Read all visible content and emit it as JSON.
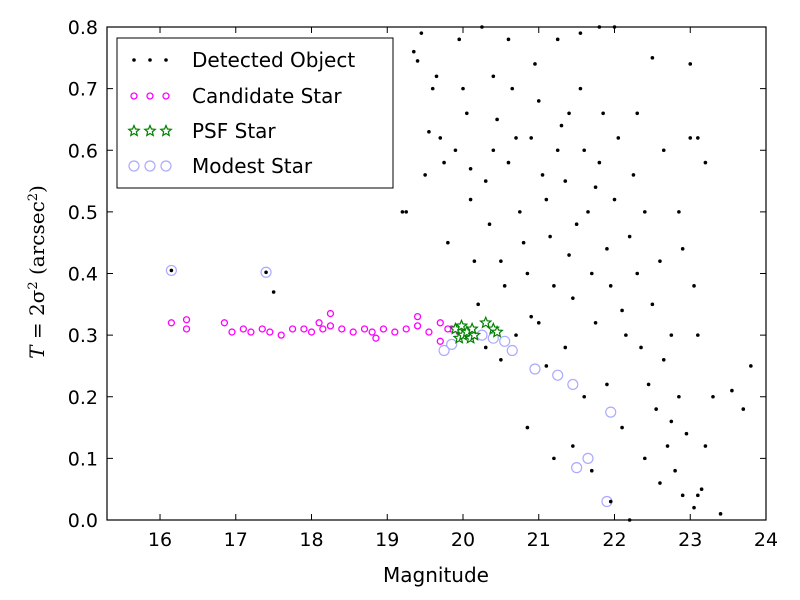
{
  "chart_data": {
    "type": "scatter",
    "title": "",
    "xlabel": "Magnitude",
    "ylabel": {
      "prefix": "T",
      "eq": " = 2σ",
      "exp1": "2",
      "mid": " (arcsec",
      "exp2": "2",
      "suffix": ")"
    },
    "xlim": [
      15.3,
      24
    ],
    "ylim": [
      0,
      0.8
    ],
    "xticks": [
      16,
      17,
      18,
      19,
      20,
      21,
      22,
      23,
      24
    ],
    "yticks": [
      0.0,
      0.1,
      0.2,
      0.3,
      0.4,
      0.5,
      0.6,
      0.7,
      0.8
    ],
    "xtick_labels": [
      "16",
      "17",
      "18",
      "19",
      "20",
      "21",
      "22",
      "23",
      "24"
    ],
    "ytick_labels": [
      "0.0",
      "0.1",
      "0.2",
      "0.3",
      "0.4",
      "0.5",
      "0.6",
      "0.7",
      "0.8"
    ],
    "grid": false,
    "legend_position": "top-left",
    "series": [
      {
        "name": "Detected Object",
        "marker": "dot",
        "color": "#000000",
        "points": [
          [
            16.15,
            0.405
          ],
          [
            17.4,
            0.402
          ],
          [
            17.5,
            0.37
          ],
          [
            19.2,
            0.5
          ],
          [
            19.25,
            0.5
          ],
          [
            19.5,
            0.56
          ],
          [
            19.35,
            0.76
          ],
          [
            19.4,
            0.745
          ],
          [
            19.45,
            0.79
          ],
          [
            19.6,
            0.7
          ],
          [
            19.65,
            0.72
          ],
          [
            19.7,
            0.62
          ],
          [
            19.55,
            0.63
          ],
          [
            19.75,
            0.58
          ],
          [
            19.8,
            0.45
          ],
          [
            19.9,
            0.6
          ],
          [
            19.95,
            0.78
          ],
          [
            20.0,
            0.7
          ],
          [
            20.05,
            0.66
          ],
          [
            20.1,
            0.57
          ],
          [
            20.15,
            0.42
          ],
          [
            20.2,
            0.35
          ],
          [
            20.25,
            0.8
          ],
          [
            20.3,
            0.55
          ],
          [
            20.35,
            0.48
          ],
          [
            20.4,
            0.6
          ],
          [
            20.45,
            0.65
          ],
          [
            20.5,
            0.42
          ],
          [
            20.55,
            0.38
          ],
          [
            20.6,
            0.58
          ],
          [
            20.65,
            0.7
          ],
          [
            20.7,
            0.62
          ],
          [
            20.75,
            0.5
          ],
          [
            20.8,
            0.45
          ],
          [
            20.85,
            0.4
          ],
          [
            20.9,
            0.33
          ],
          [
            20.95,
            0.74
          ],
          [
            21.0,
            0.68
          ],
          [
            21.05,
            0.56
          ],
          [
            21.1,
            0.52
          ],
          [
            21.15,
            0.46
          ],
          [
            21.2,
            0.38
          ],
          [
            21.25,
            0.78
          ],
          [
            21.3,
            0.64
          ],
          [
            21.35,
            0.55
          ],
          [
            21.4,
            0.43
          ],
          [
            21.45,
            0.36
          ],
          [
            21.5,
            0.48
          ],
          [
            21.55,
            0.7
          ],
          [
            21.6,
            0.6
          ],
          [
            21.65,
            0.5
          ],
          [
            21.7,
            0.4
          ],
          [
            21.75,
            0.32
          ],
          [
            21.8,
            0.58
          ],
          [
            21.85,
            0.66
          ],
          [
            21.9,
            0.44
          ],
          [
            21.95,
            0.38
          ],
          [
            22.0,
            0.52
          ],
          [
            22.05,
            0.62
          ],
          [
            22.1,
            0.34
          ],
          [
            22.15,
            0.3
          ],
          [
            22.2,
            0.46
          ],
          [
            22.25,
            0.56
          ],
          [
            22.3,
            0.4
          ],
          [
            22.35,
            0.28
          ],
          [
            22.4,
            0.5
          ],
          [
            22.45,
            0.22
          ],
          [
            22.5,
            0.35
          ],
          [
            22.55,
            0.18
          ],
          [
            22.6,
            0.42
          ],
          [
            22.65,
            0.26
          ],
          [
            22.7,
            0.12
          ],
          [
            22.75,
            0.3
          ],
          [
            22.8,
            0.08
          ],
          [
            22.85,
            0.2
          ],
          [
            22.9,
            0.04
          ],
          [
            23.0,
            0.62
          ],
          [
            23.05,
            0.02
          ],
          [
            23.1,
            0.62
          ],
          [
            23.15,
            0.05
          ],
          [
            23.2,
            0.58
          ],
          [
            23.3,
            0.2
          ],
          [
            23.4,
            0.01
          ],
          [
            23.55,
            0.21
          ],
          [
            23.7,
            0.18
          ],
          [
            23.8,
            0.25
          ],
          [
            23.0,
            0.74
          ],
          [
            22.5,
            0.75
          ],
          [
            22.0,
            0.8
          ],
          [
            21.8,
            0.8
          ],
          [
            21.55,
            0.79
          ],
          [
            21.2,
            0.1
          ],
          [
            21.7,
            0.08
          ],
          [
            21.95,
            0.03
          ],
          [
            22.2,
            0.0
          ],
          [
            22.1,
            0.15
          ],
          [
            21.9,
            0.22
          ],
          [
            21.6,
            0.2
          ],
          [
            21.35,
            0.28
          ],
          [
            21.1,
            0.25
          ],
          [
            20.85,
            0.15
          ],
          [
            20.3,
            0.28
          ],
          [
            20.7,
            0.3
          ],
          [
            21.0,
            0.32
          ],
          [
            20.5,
            0.26
          ],
          [
            21.45,
            0.12
          ],
          [
            22.4,
            0.1
          ],
          [
            22.6,
            0.06
          ],
          [
            23.2,
            0.12
          ],
          [
            23.1,
            0.04
          ],
          [
            22.95,
            0.14
          ],
          [
            22.75,
            0.16
          ],
          [
            20.1,
            0.52
          ],
          [
            20.6,
            0.78
          ],
          [
            21.75,
            0.54
          ],
          [
            22.3,
            0.66
          ],
          [
            22.65,
            0.6
          ],
          [
            22.85,
            0.5
          ],
          [
            22.9,
            0.44
          ],
          [
            23.05,
            0.38
          ],
          [
            23.1,
            0.3
          ],
          [
            21.25,
            0.6
          ],
          [
            21.4,
            0.66
          ],
          [
            20.9,
            0.62
          ],
          [
            20.4,
            0.72
          ]
        ]
      },
      {
        "name": "Candidate Star",
        "marker": "circle",
        "color": "#ff00ff",
        "points": [
          [
            16.15,
            0.32
          ],
          [
            16.35,
            0.325
          ],
          [
            16.35,
            0.31
          ],
          [
            16.85,
            0.32
          ],
          [
            16.95,
            0.305
          ],
          [
            17.1,
            0.31
          ],
          [
            17.2,
            0.305
          ],
          [
            17.35,
            0.31
          ],
          [
            17.45,
            0.305
          ],
          [
            17.6,
            0.3
          ],
          [
            17.75,
            0.31
          ],
          [
            17.9,
            0.31
          ],
          [
            18.0,
            0.305
          ],
          [
            18.15,
            0.31
          ],
          [
            18.25,
            0.315
          ],
          [
            18.4,
            0.31
          ],
          [
            18.55,
            0.305
          ],
          [
            18.7,
            0.31
          ],
          [
            18.8,
            0.305
          ],
          [
            18.95,
            0.31
          ],
          [
            19.1,
            0.305
          ],
          [
            19.25,
            0.31
          ],
          [
            19.4,
            0.315
          ],
          [
            19.55,
            0.305
          ],
          [
            19.7,
            0.32
          ],
          [
            19.85,
            0.31
          ],
          [
            19.95,
            0.305
          ],
          [
            20.05,
            0.3
          ],
          [
            18.1,
            0.32
          ],
          [
            18.25,
            0.335
          ],
          [
            19.4,
            0.33
          ],
          [
            18.85,
            0.295
          ],
          [
            19.7,
            0.29
          ],
          [
            19.8,
            0.31
          ]
        ]
      },
      {
        "name": "PSF Star",
        "marker": "star",
        "color": "#008000",
        "points": [
          [
            19.95,
            0.295
          ],
          [
            20.0,
            0.3
          ],
          [
            20.05,
            0.305
          ],
          [
            20.1,
            0.295
          ],
          [
            20.15,
            0.3
          ],
          [
            19.9,
            0.31
          ],
          [
            19.98,
            0.315
          ],
          [
            20.3,
            0.32
          ],
          [
            20.4,
            0.31
          ],
          [
            20.45,
            0.305
          ],
          [
            20.12,
            0.31
          ]
        ]
      },
      {
        "name": "Modest Star",
        "marker": "ring",
        "color": "#aaaaff",
        "points": [
          [
            16.15,
            0.405
          ],
          [
            17.4,
            0.402
          ],
          [
            19.75,
            0.275
          ],
          [
            20.65,
            0.275
          ],
          [
            20.95,
            0.245
          ],
          [
            21.25,
            0.235
          ],
          [
            21.45,
            0.22
          ],
          [
            21.5,
            0.085
          ],
          [
            21.65,
            0.1
          ],
          [
            21.9,
            0.03
          ],
          [
            21.95,
            0.175
          ],
          [
            20.55,
            0.29
          ],
          [
            20.4,
            0.295
          ],
          [
            20.25,
            0.3
          ],
          [
            19.85,
            0.285
          ]
        ]
      }
    ]
  }
}
